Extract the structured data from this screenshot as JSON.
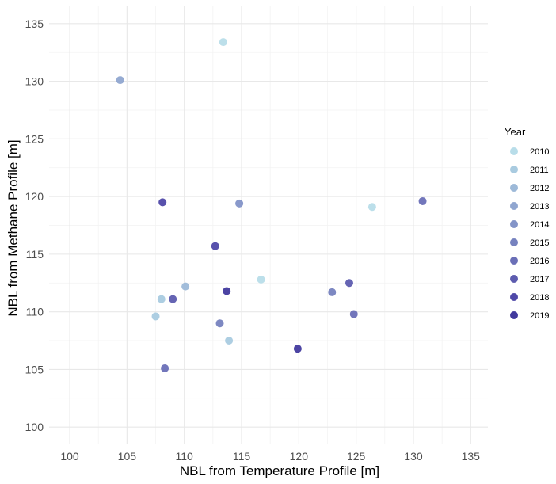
{
  "chart_data": {
    "type": "scatter",
    "xlabel": "NBL from Temperature Profile [m]",
    "ylabel": "NBL from Methane Profile [m]",
    "xlim": [
      98.2,
      136.5
    ],
    "ylim": [
      98.5,
      136.5
    ],
    "x_ticks": [
      100,
      105,
      110,
      115,
      120,
      125,
      130,
      135
    ],
    "y_ticks": [
      100,
      105,
      110,
      115,
      120,
      125,
      130,
      135
    ],
    "grid": true,
    "legend": {
      "title": "Year",
      "placement": "right",
      "entries": [
        {
          "label": "2010",
          "color": "#b8dde9"
        },
        {
          "label": "2011",
          "color": "#a9cbe0"
        },
        {
          "label": "2012",
          "color": "#9db9d8"
        },
        {
          "label": "2013",
          "color": "#90a6d0"
        },
        {
          "label": "2014",
          "color": "#8394c8"
        },
        {
          "label": "2015",
          "color": "#7682bf"
        },
        {
          "label": "2016",
          "color": "#6a6fb7"
        },
        {
          "label": "2017",
          "color": "#5d5caf"
        },
        {
          "label": "2018",
          "color": "#4f48a8"
        },
        {
          "label": "2019",
          "color": "#423a9e"
        }
      ]
    },
    "points": [
      {
        "x": 113.4,
        "y": 133.4,
        "year": "2010"
      },
      {
        "x": 116.7,
        "y": 112.8,
        "year": "2010"
      },
      {
        "x": 126.4,
        "y": 119.1,
        "year": "2010"
      },
      {
        "x": 107.5,
        "y": 109.6,
        "year": "2011"
      },
      {
        "x": 108.0,
        "y": 111.1,
        "year": "2011"
      },
      {
        "x": 113.9,
        "y": 107.5,
        "year": "2011"
      },
      {
        "x": 110.1,
        "y": 112.2,
        "year": "2012"
      },
      {
        "x": 104.4,
        "y": 130.1,
        "year": "2013"
      },
      {
        "x": 114.8,
        "y": 119.4,
        "year": "2014"
      },
      {
        "x": 122.9,
        "y": 111.7,
        "year": "2015"
      },
      {
        "x": 113.1,
        "y": 109.0,
        "year": "2015"
      },
      {
        "x": 108.3,
        "y": 105.1,
        "year": "2016"
      },
      {
        "x": 130.8,
        "y": 119.6,
        "year": "2016"
      },
      {
        "x": 124.8,
        "y": 109.8,
        "year": "2016"
      },
      {
        "x": 124.4,
        "y": 112.5,
        "year": "2017"
      },
      {
        "x": 109.0,
        "y": 111.1,
        "year": "2017"
      },
      {
        "x": 108.1,
        "y": 119.5,
        "year": "2018"
      },
      {
        "x": 112.7,
        "y": 115.7,
        "year": "2018"
      },
      {
        "x": 113.7,
        "y": 111.8,
        "year": "2019"
      },
      {
        "x": 119.9,
        "y": 106.8,
        "year": "2019"
      }
    ]
  }
}
